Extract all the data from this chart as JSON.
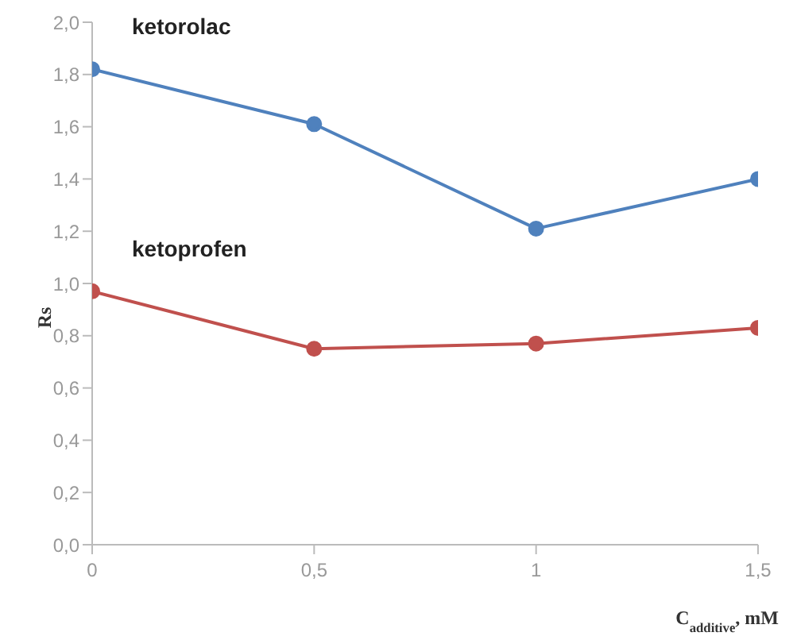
{
  "chart_data": {
    "type": "line",
    "xlabel": "C$_{additive}$, mM",
    "ylabel": "Rs",
    "x": [
      0,
      0.5,
      1,
      1.5
    ],
    "series": [
      {
        "name": "ketorolac",
        "color": "#4f81bd",
        "values": [
          1.82,
          1.61,
          1.21,
          1.4
        ]
      },
      {
        "name": "ketoprofen",
        "color": "#c0504d",
        "values": [
          0.97,
          0.75,
          0.77,
          0.83
        ]
      }
    ],
    "xlim": [
      0,
      1.5
    ],
    "xticks": [
      0,
      {
        "value": 0.5,
        "label": "0,5"
      },
      1,
      {
        "value": 1.5,
        "label": "1,5"
      }
    ],
    "ylim": [
      0,
      2
    ],
    "yticks": [
      {
        "value": 0,
        "label": "0,0"
      },
      {
        "value": 0.2,
        "label": "0,2"
      },
      {
        "value": 0.4,
        "label": "0,4"
      },
      {
        "value": 0.6,
        "label": "0,6"
      },
      {
        "value": 0.8,
        "label": "0,8"
      },
      {
        "value": 1,
        "label": "1,0"
      },
      {
        "value": 1.2,
        "label": "1,2"
      },
      {
        "value": 1.4,
        "label": "1,4"
      },
      {
        "value": 1.6,
        "label": "1,6"
      },
      {
        "value": 1.8,
        "label": "1,8"
      },
      {
        "value": 2,
        "label": "2,0"
      }
    ],
    "marker": "circle",
    "grid": false,
    "legend": false
  }
}
